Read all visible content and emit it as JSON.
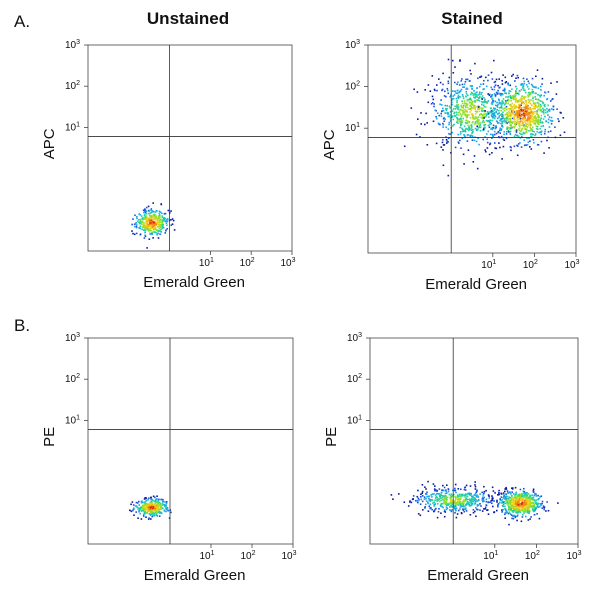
{
  "figure": {
    "panel_letters": [
      "A.",
      "B."
    ],
    "column_titles": [
      "Unstained",
      "Stained"
    ]
  },
  "chart_data": [
    {
      "type": "scatter",
      "panel": "A.",
      "title": "Unstained",
      "xlabel": "Emerald Green",
      "ylabel": "APC",
      "x_scale": "log",
      "y_scale": "log",
      "xlim": [
        0.01,
        1000
      ],
      "ylim": [
        0.01,
        1000
      ],
      "x_ticks": [
        {
          "base": "10",
          "exp": "1",
          "value": 10
        },
        {
          "base": "10",
          "exp": "2",
          "value": 100
        },
        {
          "base": "10",
          "exp": "3",
          "value": 1000
        }
      ],
      "y_ticks": [
        {
          "base": "10",
          "exp": "1",
          "value": 10
        },
        {
          "base": "10",
          "exp": "2",
          "value": 100
        },
        {
          "base": "10",
          "exp": "3",
          "value": 1000
        }
      ],
      "gate": {
        "x": 1.0,
        "y": 6.0
      },
      "series": [
        {
          "center": [
            0.35,
            0.05
          ],
          "spread": [
            0.2,
            0.15
          ],
          "count": 360,
          "density": "high"
        }
      ]
    },
    {
      "type": "scatter",
      "panel": "A.",
      "title": "Stained",
      "xlabel": "Emerald Green",
      "ylabel": "APC",
      "x_scale": "log",
      "y_scale": "log",
      "xlim": [
        0.01,
        1000
      ],
      "ylim": [
        0.01,
        1000
      ],
      "x_ticks": [
        {
          "base": "10",
          "exp": "1",
          "value": 10
        },
        {
          "base": "10",
          "exp": "2",
          "value": 100
        },
        {
          "base": "10",
          "exp": "3",
          "value": 1000
        }
      ],
      "y_ticks": [
        {
          "base": "10",
          "exp": "1",
          "value": 10
        },
        {
          "base": "10",
          "exp": "2",
          "value": 100
        },
        {
          "base": "10",
          "exp": "3",
          "value": 1000
        }
      ],
      "gate": {
        "x": 1.0,
        "y": 6.0
      },
      "series": [
        {
          "center": [
            3.0,
            25.0
          ],
          "spread": [
            0.5,
            0.45
          ],
          "count": 700,
          "density": "medium"
        },
        {
          "center": [
            50.0,
            25.0
          ],
          "spread": [
            0.35,
            0.35
          ],
          "count": 800,
          "density": "high"
        }
      ]
    },
    {
      "type": "scatter",
      "panel": "B.",
      "title": "Unstained",
      "xlabel": "Emerald Green",
      "ylabel": "PE",
      "x_scale": "log",
      "y_scale": "log",
      "xlim": [
        0.01,
        1000
      ],
      "ylim": [
        0.01,
        1000
      ],
      "x_ticks": [
        {
          "base": "10",
          "exp": "1",
          "value": 10
        },
        {
          "base": "10",
          "exp": "2",
          "value": 100
        },
        {
          "base": "10",
          "exp": "3",
          "value": 1000
        }
      ],
      "y_ticks": [
        {
          "base": "10",
          "exp": "1",
          "value": 10
        },
        {
          "base": "10",
          "exp": "2",
          "value": 100
        },
        {
          "base": "10",
          "exp": "3",
          "value": 1000
        }
      ],
      "gate": {
        "x": 1.0,
        "y": 6.0
      },
      "series": [
        {
          "center": [
            0.35,
            0.08
          ],
          "spread": [
            0.2,
            0.1
          ],
          "count": 340,
          "density": "high"
        }
      ]
    },
    {
      "type": "scatter",
      "panel": "B.",
      "title": "Stained",
      "xlabel": "Emerald Green",
      "ylabel": "PE",
      "x_scale": "log",
      "y_scale": "log",
      "xlim": [
        0.01,
        1000
      ],
      "ylim": [
        0.01,
        1000
      ],
      "x_ticks": [
        {
          "base": "10",
          "exp": "1",
          "value": 10
        },
        {
          "base": "10",
          "exp": "2",
          "value": 100
        },
        {
          "base": "10",
          "exp": "3",
          "value": 1000
        }
      ],
      "y_ticks": [
        {
          "base": "10",
          "exp": "1",
          "value": 10
        },
        {
          "base": "10",
          "exp": "2",
          "value": 100
        },
        {
          "base": "10",
          "exp": "3",
          "value": 1000
        }
      ],
      "gate": {
        "x": 1.0,
        "y": 6.0
      },
      "series": [
        {
          "center": [
            1.0,
            0.12
          ],
          "spread": [
            0.5,
            0.15
          ],
          "count": 500,
          "density": "medium"
        },
        {
          "center": [
            40.0,
            0.1
          ],
          "spread": [
            0.25,
            0.15
          ],
          "count": 600,
          "density": "high"
        }
      ]
    }
  ]
}
